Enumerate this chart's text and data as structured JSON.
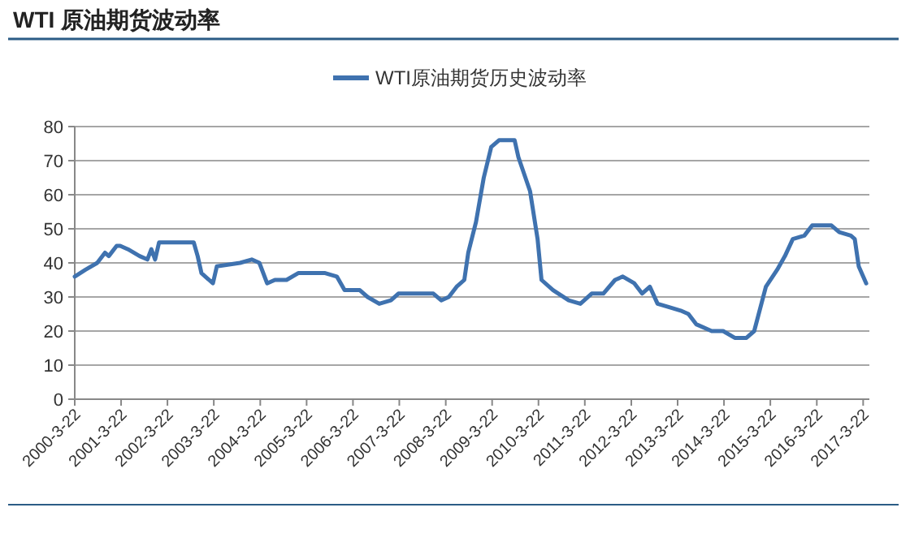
{
  "chart_data": {
    "type": "line",
    "title": "WTI 原油期货波动率",
    "x": [
      "2000-03-22",
      "2000-06",
      "2000-09",
      "2000-11",
      "2000-12",
      "2001-02",
      "2001-03",
      "2001-05",
      "2001-08",
      "2001-10",
      "2001-11",
      "2001-12",
      "2002-01",
      "2002-03",
      "2002-06",
      "2002-10",
      "2002-11",
      "2002-12",
      "2003-03",
      "2003-04",
      "2003-10",
      "2004-01",
      "2004-03",
      "2004-05",
      "2004-07",
      "2004-10",
      "2005-01",
      "2005-03",
      "2005-06",
      "2005-08",
      "2005-11",
      "2006-01",
      "2006-05",
      "2006-07",
      "2006-10",
      "2007-01",
      "2007-03",
      "2007-06",
      "2007-12",
      "2008-02",
      "2008-04",
      "2008-06",
      "2008-08",
      "2008-09",
      "2008-11",
      "2009-01",
      "2009-03",
      "2009-05",
      "2009-09",
      "2009-10",
      "2010-01",
      "2010-03",
      "2010-04",
      "2010-07",
      "2010-11",
      "2011-02",
      "2011-05",
      "2011-08",
      "2011-11",
      "2012-01",
      "2012-04",
      "2012-06",
      "2012-08",
      "2012-10",
      "2013-01",
      "2013-04",
      "2013-06",
      "2013-08",
      "2013-12",
      "2014-03",
      "2014-06",
      "2014-09",
      "2014-11",
      "2015-02",
      "2015-05",
      "2015-07",
      "2015-09",
      "2015-12",
      "2016-02",
      "2016-05",
      "2016-07",
      "2016-09",
      "2016-12",
      "2017-01",
      "2017-02",
      "2017-04"
    ],
    "series": [
      {
        "name": "WTI原油期货历史波动率",
        "color": "#3f72af",
        "values": [
          36,
          38,
          40,
          43,
          42,
          45,
          45,
          44,
          42,
          41,
          44,
          41,
          46,
          46,
          46,
          46,
          42,
          37,
          34,
          39,
          40,
          41,
          40,
          34,
          35,
          35,
          37,
          37,
          37,
          37,
          36,
          32,
          32,
          30,
          28,
          29,
          31,
          31,
          31,
          29,
          30,
          33,
          35,
          43,
          52,
          65,
          74,
          76,
          76,
          71,
          61,
          47,
          35,
          32,
          29,
          28,
          31,
          31,
          35,
          36,
          34,
          31,
          33,
          28,
          27,
          26,
          25,
          22,
          20,
          20,
          18,
          18,
          20,
          33,
          38,
          42,
          47,
          48,
          51,
          51,
          51,
          49,
          48,
          47,
          39,
          34
        ]
      }
    ],
    "xlim": [
      "2000-03-22",
      "2017-05-10"
    ],
    "xticks": [
      {
        "value": "2000-03-22",
        "label": "2000-3-22"
      },
      {
        "value": "2001-03-22",
        "label": "2001-3-22"
      },
      {
        "value": "2002-03-22",
        "label": "2002-3-22"
      },
      {
        "value": "2003-03-22",
        "label": "2003-3-22"
      },
      {
        "value": "2004-03-22",
        "label": "2004-3-22"
      },
      {
        "value": "2005-03-22",
        "label": "2005-3-22"
      },
      {
        "value": "2006-03-22",
        "label": "2006-3-22"
      },
      {
        "value": "2007-03-22",
        "label": "2007-3-22"
      },
      {
        "value": "2008-03-22",
        "label": "2008-3-22"
      },
      {
        "value": "2009-03-22",
        "label": "2009-3-22"
      },
      {
        "value": "2010-03-22",
        "label": "2010-3-22"
      },
      {
        "value": "2011-03-22",
        "label": "2011-3-22"
      },
      {
        "value": "2012-03-22",
        "label": "2012-3-22"
      },
      {
        "value": "2013-03-22",
        "label": "2013-3-22"
      },
      {
        "value": "2014-03-22",
        "label": "2014-3-22"
      },
      {
        "value": "2015-03-22",
        "label": "2015-3-22"
      },
      {
        "value": "2016-03-22",
        "label": "2016-3-22"
      },
      {
        "value": "2017-03-22",
        "label": "2017-3-22"
      }
    ],
    "ylim": [
      0,
      80
    ],
    "yticks": [
      0,
      10,
      20,
      30,
      40,
      50,
      60,
      70,
      80
    ],
    "grid": "y",
    "legend": "top"
  }
}
